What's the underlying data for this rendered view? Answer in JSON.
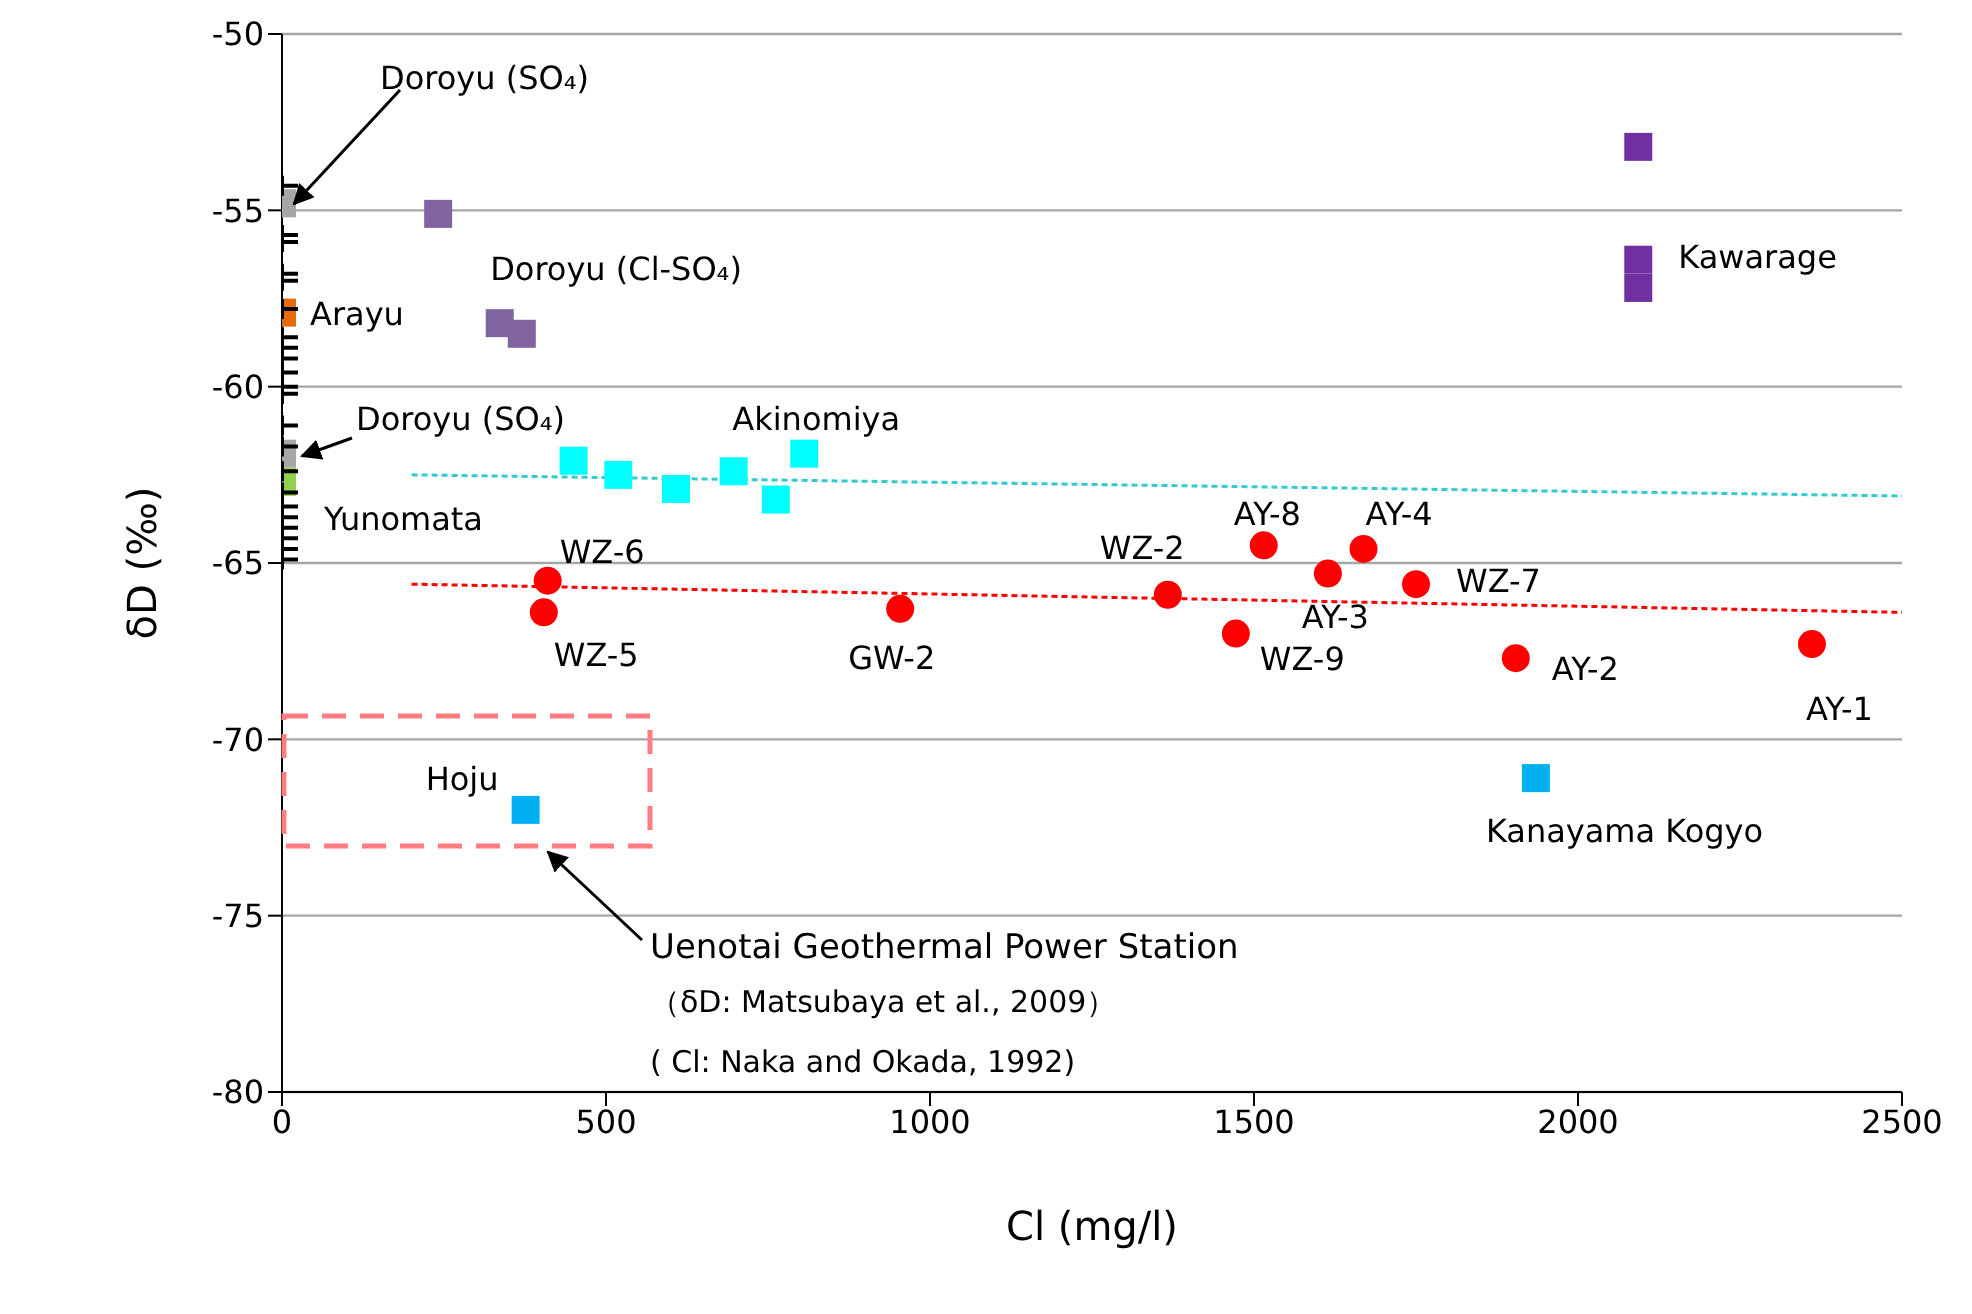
{
  "chart_data": {
    "type": "scatter",
    "xlabel": "Cl (mg/l)",
    "ylabel": "δD (‰)",
    "xlim": [
      0,
      2500
    ],
    "xticks": [
      0,
      500,
      1000,
      1500,
      2000,
      2500
    ],
    "ylim": [
      -80,
      -50
    ],
    "yticks": [
      -80,
      -75,
      -70,
      -65,
      -60,
      -55,
      -50
    ],
    "grid": "y",
    "legend": false,
    "series": [
      {
        "color": "#000000",
        "marker": "cross",
        "x": [
          0,
          0,
          0,
          0,
          0,
          0,
          0,
          0,
          0,
          0,
          0,
          0,
          0,
          0,
          0,
          0,
          0,
          0,
          0,
          0,
          0,
          0
        ],
        "values": [
          -54.3,
          -55.7,
          -55.9,
          -56.8,
          -57.0,
          -57.8,
          -58.6,
          -58.9,
          -59.2,
          -59.6,
          -60.0,
          -60.2,
          -61.1,
          -61.7,
          -62.4,
          -63.0,
          -63.4,
          -63.7,
          -64.0,
          -64.3,
          -64.6,
          -64.9
        ]
      },
      {
        "color": "#a6a6a6",
        "marker": "square",
        "x": [
          0,
          0
        ],
        "values": [
          -54.8,
          -61.9
        ]
      },
      {
        "color": "#e46c0a",
        "marker": "square",
        "x": [
          0
        ],
        "values": [
          -57.9
        ]
      },
      {
        "color": "#92d050",
        "marker": "square",
        "x": [
          0
        ],
        "values": [
          -62.7
        ]
      },
      {
        "color": "#8064a2",
        "marker": "square",
        "x": [
          241,
          336,
          370
        ],
        "values": [
          -55.1,
          -58.2,
          -58.5
        ]
      },
      {
        "color": "#7030a0",
        "marker": "square",
        "x": [
          2093,
          2093,
          2093
        ],
        "values": [
          -53.2,
          -56.4,
          -57.2
        ]
      },
      {
        "color": "#00ffff",
        "marker": "square",
        "x": [
          450,
          519,
          608,
          697,
          762,
          806
        ],
        "values": [
          -62.1,
          -62.5,
          -62.9,
          -62.4,
          -63.2,
          -61.9
        ]
      },
      {
        "color": "#ff0000",
        "marker": "circle",
        "x": [
          410,
          404,
          954,
          1367,
          1515,
          1669,
          1614,
          1750,
          1472,
          1904,
          2361
        ],
        "values": [
          -65.5,
          -66.4,
          -66.3,
          -65.9,
          -64.5,
          -64.6,
          -65.3,
          -65.6,
          -67.0,
          -67.7,
          -67.3
        ]
      },
      {
        "color": "#00b0f0",
        "marker": "square",
        "x": [
          376,
          1935
        ],
        "values": [
          -72.0,
          -71.1
        ]
      },
      {
        "type": "line",
        "color": "#33cccc",
        "marker": "none",
        "line_style": "dashed",
        "x": [
          200,
          2500
        ],
        "values": [
          -62.5,
          -63.1
        ]
      },
      {
        "type": "line",
        "color": "#ff0000",
        "marker": "none",
        "line_style": "dashed",
        "x": [
          200,
          2500
        ],
        "values": [
          -65.6,
          -66.4
        ]
      }
    ],
    "annotations": [
      {
        "text": "Doroyu (SO₄)",
        "x": 0,
        "y": -54.8
      },
      {
        "text": "Doroyu (SO₄)",
        "x": 0,
        "y": -61.9
      },
      {
        "text": "Doroyu (Cl-SO₄)",
        "x": 241,
        "y": -55.1
      },
      {
        "text": "Arayu",
        "x": 0,
        "y": -57.9
      },
      {
        "text": "Yunomata",
        "x": 0,
        "y": -62.7
      },
      {
        "text": "Akinomiya",
        "x": 806,
        "y": -61.9
      },
      {
        "text": "Kawarage",
        "x": 2093,
        "y": -56.4
      },
      {
        "text": "WZ-6",
        "x": 410,
        "y": -65.5
      },
      {
        "text": "WZ-5",
        "x": 404,
        "y": -66.4
      },
      {
        "text": "GW-2",
        "x": 954,
        "y": -66.3
      },
      {
        "text": "WZ-2",
        "x": 1367,
        "y": -65.9
      },
      {
        "text": "AY-8",
        "x": 1515,
        "y": -64.5
      },
      {
        "text": "AY-4",
        "x": 1669,
        "y": -64.6
      },
      {
        "text": "AY-3",
        "x": 1614,
        "y": -65.3
      },
      {
        "text": "WZ-7",
        "x": 1750,
        "y": -65.6
      },
      {
        "text": "WZ-9",
        "x": 1472,
        "y": -67.0
      },
      {
        "text": "AY-2",
        "x": 1904,
        "y": -67.7
      },
      {
        "text": "AY-1",
        "x": 2361,
        "y": -67.3
      },
      {
        "text": "Hoju",
        "x": 376,
        "y": -72.0
      },
      {
        "text": "Kanayama Kogyo",
        "x": 1935,
        "y": -71.1
      },
      "Uenotai Geothermal Power Station",
      "（δD: Matsubaya et al., 2009）",
      "( Cl: Naka and Okada, 1992)"
    ]
  }
}
